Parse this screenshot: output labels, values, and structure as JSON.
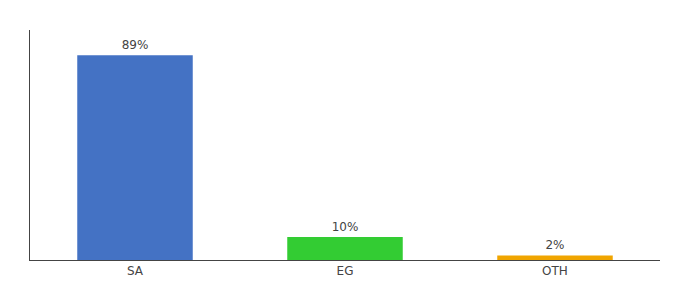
{
  "chart_data": {
    "type": "bar",
    "categories": [
      "SA",
      "EG",
      "OTH"
    ],
    "values": [
      89,
      10,
      2
    ],
    "value_labels": [
      "89%",
      "10%",
      "2%"
    ],
    "colors": [
      "#4472c4",
      "#33cc33",
      "#f0a500"
    ],
    "ylim": [
      0,
      100
    ],
    "data_labels": true,
    "tick_labels": "x",
    "grid": false
  }
}
